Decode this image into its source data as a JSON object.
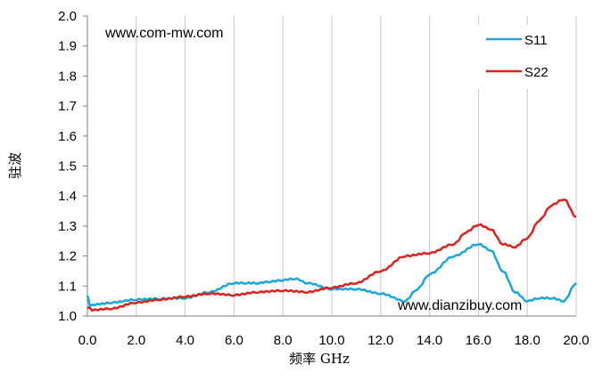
{
  "chart_data": {
    "type": "line",
    "title": "",
    "xlabel": "频率 GHz",
    "ylabel": "驻波",
    "xlim": [
      0,
      20
    ],
    "ylim": [
      1.0,
      2.0
    ],
    "x_ticks": [
      "0.0",
      "2.0",
      "4.0",
      "6.0",
      "8.0",
      "10.0",
      "12.0",
      "14.0",
      "16.0",
      "18.0",
      "20.0"
    ],
    "y_ticks": [
      "1.0",
      "1.1",
      "1.2",
      "1.3",
      "1.4",
      "1.5",
      "1.6",
      "1.7",
      "1.8",
      "1.9",
      "2.0"
    ],
    "grid": "vertical",
    "legend_position": "top-right",
    "annotations": [
      "www.com-mw.com",
      "www.dianzibuy.com"
    ],
    "series": [
      {
        "name": "S11",
        "color": "#18a7dc",
        "x": [
          0,
          0.1,
          0.5,
          1,
          2,
          3,
          4,
          5,
          6,
          6.5,
          7,
          7.5,
          8,
          8.5,
          9,
          10,
          11,
          12,
          13,
          13.5,
          14,
          15,
          16,
          16.5,
          17,
          17.5,
          18,
          18.5,
          19,
          19.5,
          20
        ],
        "y": [
          1.07,
          1.035,
          1.04,
          1.045,
          1.055,
          1.058,
          1.06,
          1.08,
          1.11,
          1.11,
          1.11,
          1.115,
          1.12,
          1.125,
          1.11,
          1.09,
          1.09,
          1.075,
          1.05,
          1.09,
          1.14,
          1.2,
          1.24,
          1.22,
          1.15,
          1.08,
          1.05,
          1.06,
          1.06,
          1.05,
          1.11
        ]
      },
      {
        "name": "S22",
        "color": "#e0201b",
        "x": [
          0,
          0.2,
          1,
          2,
          3,
          4,
          5,
          6,
          7,
          8,
          9,
          10,
          11,
          12,
          13,
          14,
          15,
          15.5,
          16,
          16.5,
          17,
          17.5,
          18,
          18.5,
          19,
          19.5,
          20
        ],
        "y": [
          1.03,
          1.02,
          1.025,
          1.045,
          1.055,
          1.065,
          1.075,
          1.07,
          1.08,
          1.085,
          1.08,
          1.095,
          1.11,
          1.15,
          1.2,
          1.21,
          1.24,
          1.28,
          1.305,
          1.29,
          1.24,
          1.23,
          1.26,
          1.32,
          1.37,
          1.39,
          1.33
        ]
      }
    ]
  }
}
